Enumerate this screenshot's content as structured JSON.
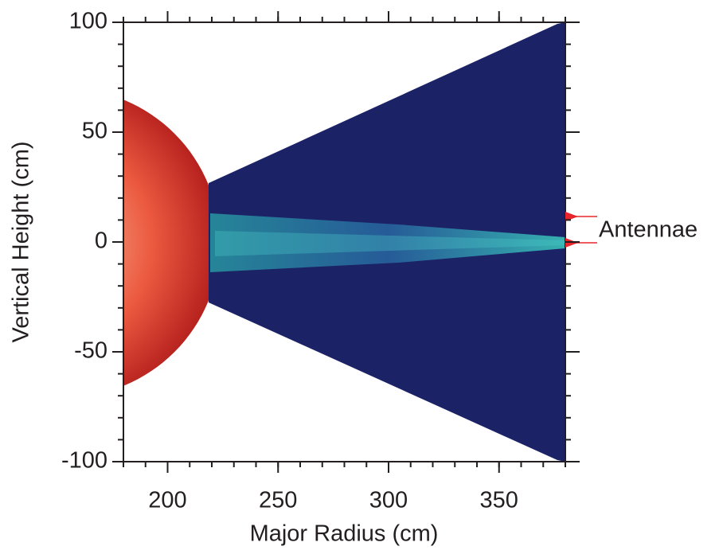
{
  "chart_data": {
    "type": "image",
    "xlabel": "Major Radius (cm)",
    "ylabel": "Vertical Height (cm)",
    "xlim": [
      180,
      380
    ],
    "xticks": [
      200,
      250,
      300,
      350
    ],
    "ylim": [
      -100,
      100
    ],
    "yticks": [
      -100,
      -50,
      0,
      50,
      100
    ],
    "minor_step": 10,
    "annotation": "Antennae"
  }
}
